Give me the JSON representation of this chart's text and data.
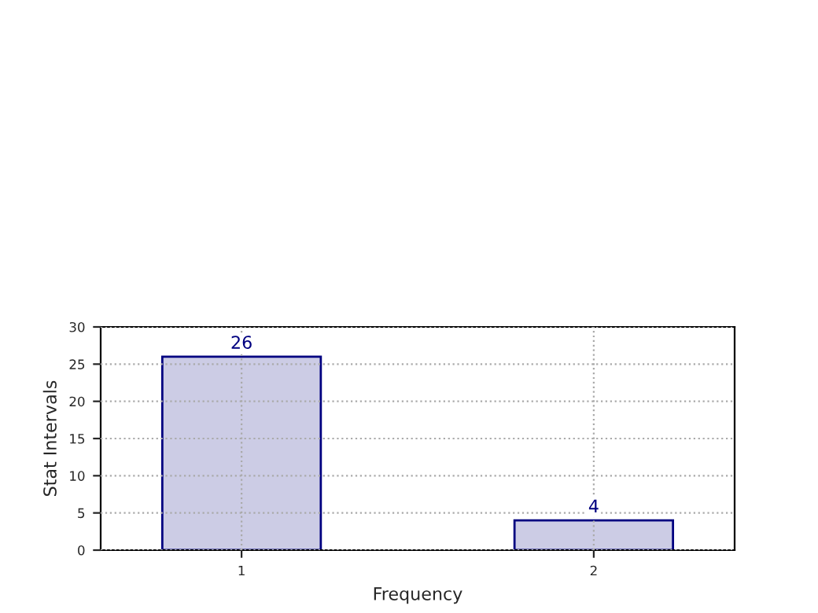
{
  "chart_data": {
    "type": "bar",
    "xlabel": "Frequency",
    "ylabel": "Stat Intervals",
    "x": [
      1,
      2
    ],
    "values": [
      26,
      4
    ],
    "color": "#ccccE5",
    "xlim": [
      0.6,
      2.4
    ],
    "xticks": [
      1,
      2
    ],
    "ylim": [
      0,
      30
    ],
    "yticks": [
      0,
      5,
      10,
      15,
      20,
      25,
      30
    ],
    "grid": true,
    "data_labels": true
  }
}
